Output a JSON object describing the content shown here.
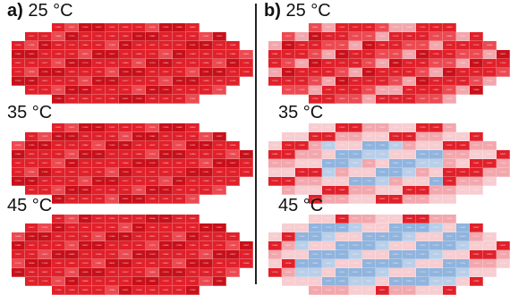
{
  "figure": {
    "panel_a": {
      "letter": "a",
      "maps": [
        {
          "temperature": "25 °C",
          "scheme": "red"
        },
        {
          "temperature": "35 °C",
          "scheme": "red"
        },
        {
          "temperature": "45 °C",
          "scheme": "red"
        }
      ]
    },
    "panel_b": {
      "letter": "b",
      "maps": [
        {
          "temperature": "25 °C",
          "scheme": "red_pink"
        },
        {
          "temperature": "35 °C",
          "scheme": "pink_blue"
        },
        {
          "temperature": "45 °C",
          "scheme": "pink_blue_strong"
        }
      ]
    },
    "colors": {
      "red_dark": "#c8101a",
      "red": "#e0202a",
      "red_light": "#ec4a52",
      "pink": "#f2a7ad",
      "pink_light": "#f7cdd1",
      "blue": "#8fb4de",
      "blue_light": "#b9cfe9",
      "divider": "#222222",
      "background": "#ffffff"
    },
    "cell_values": [
      "1.9842",
      "1.8521",
      "1.9303",
      "1.9855",
      "1.9651",
      "1.8937",
      "1.7602",
      "1.9017",
      "1.9231",
      "1.8405",
      "1.9710",
      "1.8266",
      "1.7955",
      "1.9463",
      "1.8809",
      "1.9120"
    ]
  }
}
